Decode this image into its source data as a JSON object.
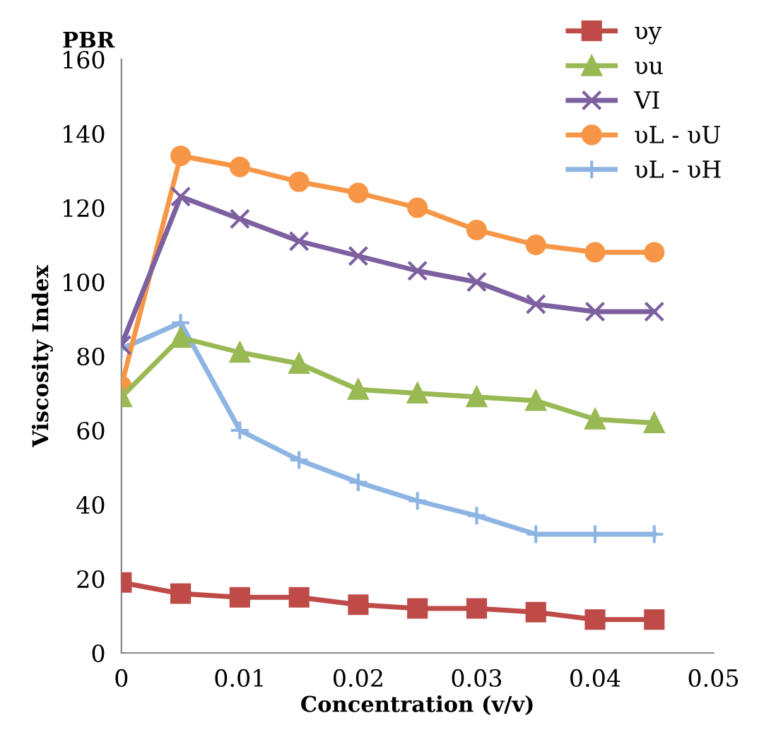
{
  "chart_data": {
    "type": "line",
    "title": "PBR",
    "xlabel": "Concentration (v/v)",
    "ylabel": "Viscosity Index",
    "x": [
      0,
      0.005,
      0.01,
      0.015,
      0.02,
      0.025,
      0.03,
      0.035,
      0.04,
      0.045
    ],
    "xlim": [
      0,
      0.05
    ],
    "xticks": [
      0,
      0.01,
      0.02,
      0.03,
      0.04,
      0.05
    ],
    "ylim": [
      0,
      160
    ],
    "yticks": [
      0,
      20,
      40,
      60,
      80,
      100,
      120,
      140,
      160
    ],
    "grid": false,
    "legend": "top right",
    "series": [
      {
        "name": "υy",
        "color": "#be4b48",
        "marker": "square",
        "values": [
          19,
          16,
          15,
          15,
          13,
          12,
          12,
          11,
          9,
          9
        ]
      },
      {
        "name": "υu",
        "color": "#98b954",
        "marker": "triangle",
        "values": [
          69,
          85,
          81,
          78,
          71,
          70,
          69,
          68,
          63,
          62
        ]
      },
      {
        "name": "VI",
        "color": "#7d60a0",
        "marker": "cross",
        "values": [
          83,
          123,
          117,
          111,
          107,
          103,
          100,
          94,
          92,
          92
        ]
      },
      {
        "name": "υL - υU",
        "color": "#f79646",
        "marker": "circle",
        "values": [
          72,
          134,
          131,
          127,
          124,
          120,
          114,
          110,
          108,
          108
        ]
      },
      {
        "name": "υL - υH",
        "color": "#8eb4e3",
        "marker": "plus",
        "values": [
          82,
          89,
          60,
          52,
          46,
          41,
          37,
          32,
          32,
          32
        ]
      }
    ]
  }
}
